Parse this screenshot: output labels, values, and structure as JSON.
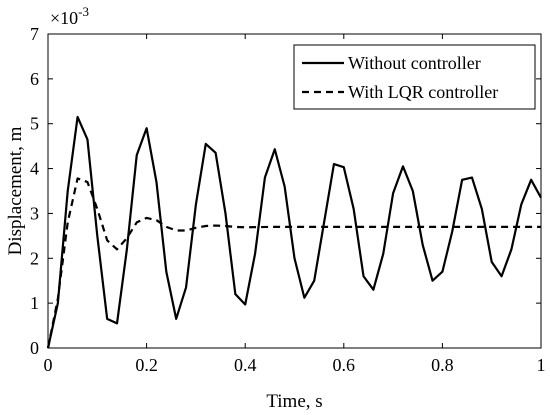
{
  "chart_data": {
    "type": "line",
    "xlabel": "Time, s",
    "ylabel": "Displacement, m",
    "scale_label": "×10",
    "scale_exponent": "-3",
    "xlim": [
      0,
      1
    ],
    "ylim": [
      0,
      7
    ],
    "xticks": [
      0,
      0.2,
      0.4,
      0.6,
      0.8,
      1
    ],
    "xtick_labels": [
      "0",
      "0.2",
      "0.4",
      "0.6",
      "0.8",
      "1"
    ],
    "yticks": [
      0,
      1,
      2,
      3,
      4,
      5,
      6,
      7
    ],
    "ytick_labels": [
      "0",
      "1",
      "2",
      "3",
      "4",
      "5",
      "6",
      "7"
    ],
    "legend_position": "top-right",
    "grid": false,
    "series": [
      {
        "name": "Without controller",
        "style": "solid",
        "color": "#000000",
        "x": [
          0,
          0.02,
          0.04,
          0.06,
          0.08,
          0.1,
          0.12,
          0.14,
          0.16,
          0.18,
          0.2,
          0.22,
          0.24,
          0.26,
          0.28,
          0.3,
          0.32,
          0.34,
          0.36,
          0.38,
          0.4,
          0.42,
          0.44,
          0.46,
          0.48,
          0.5,
          0.52,
          0.54,
          0.56,
          0.58,
          0.6,
          0.62,
          0.64,
          0.66,
          0.68,
          0.7,
          0.72,
          0.74,
          0.76,
          0.78,
          0.8,
          0.82,
          0.84,
          0.86,
          0.88,
          0.9,
          0.92,
          0.94,
          0.96,
          0.98,
          1.0
        ],
        "y": [
          0,
          1.0,
          3.5,
          5.15,
          4.65,
          2.5,
          0.65,
          0.55,
          2.2,
          4.3,
          4.9,
          3.7,
          1.7,
          0.65,
          1.35,
          3.2,
          4.55,
          4.35,
          3.0,
          1.2,
          0.97,
          2.1,
          3.8,
          4.43,
          3.6,
          2.0,
          1.12,
          1.5,
          2.8,
          4.1,
          4.03,
          3.1,
          1.6,
          1.3,
          2.1,
          3.45,
          4.05,
          3.5,
          2.3,
          1.5,
          1.7,
          2.6,
          3.75,
          3.8,
          3.1,
          1.92,
          1.6,
          2.2,
          3.2,
          3.75,
          3.35
        ]
      },
      {
        "name": "With LQR controller",
        "style": "dashed",
        "color": "#000000",
        "x": [
          0,
          0.02,
          0.04,
          0.06,
          0.08,
          0.1,
          0.12,
          0.14,
          0.16,
          0.18,
          0.2,
          0.22,
          0.24,
          0.26,
          0.28,
          0.3,
          0.32,
          0.34,
          0.36,
          0.38,
          0.4,
          0.45,
          0.5,
          0.6,
          0.7,
          0.8,
          0.9,
          1.0
        ],
        "y": [
          0,
          1.1,
          2.8,
          3.78,
          3.7,
          3.1,
          2.4,
          2.2,
          2.45,
          2.8,
          2.9,
          2.85,
          2.7,
          2.62,
          2.62,
          2.68,
          2.72,
          2.73,
          2.72,
          2.7,
          2.69,
          2.7,
          2.7,
          2.7,
          2.7,
          2.7,
          2.7,
          2.7
        ]
      }
    ]
  }
}
